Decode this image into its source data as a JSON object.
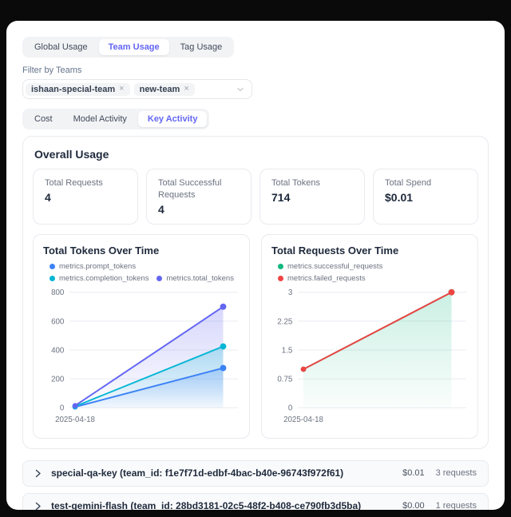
{
  "colors": {
    "accent": "#6366f1",
    "heading": "#1e293b",
    "muted_text": "#6b7280"
  },
  "tabs_primary": [
    {
      "label": "Global Usage",
      "active": false
    },
    {
      "label": "Team Usage",
      "active": true
    },
    {
      "label": "Tag Usage",
      "active": false
    }
  ],
  "filter": {
    "label": "Filter by Teams",
    "selected_teams": [
      "ishaan-special-team",
      "new-team"
    ],
    "remove_icon": "×"
  },
  "tabs_secondary": [
    {
      "label": "Cost",
      "active": false
    },
    {
      "label": "Model Activity",
      "active": false
    },
    {
      "label": "Key Activity",
      "active": true
    }
  ],
  "overall_usage": {
    "title": "Overall Usage",
    "stats": [
      {
        "label": "Total Requests",
        "value": "4"
      },
      {
        "label": "Total Successful Requests",
        "value": "4"
      },
      {
        "label": "Total Tokens",
        "value": "714"
      },
      {
        "label": "Total Spend",
        "value": "$0.01"
      }
    ]
  },
  "chart_data": [
    {
      "type": "area",
      "title": "Total Tokens Over Time",
      "x_labels": [
        "2025-04-18"
      ],
      "num_points": 2,
      "ylim": [
        0,
        800
      ],
      "yticks": [
        0,
        200,
        400,
        600,
        800
      ],
      "grid": true,
      "legend_position": "top",
      "series": [
        {
          "name": "metrics.prompt_tokens",
          "color": "#3b82f6",
          "values": [
            5,
            275
          ],
          "area": true
        },
        {
          "name": "metrics.completion_tokens",
          "color": "#06b6d4",
          "values": [
            9,
            425
          ],
          "area": true
        },
        {
          "name": "metrics.total_tokens",
          "color": "#6366f1",
          "values": [
            14,
            700
          ],
          "area": true
        }
      ]
    },
    {
      "type": "area",
      "title": "Total Requests Over Time",
      "x_labels": [
        "2025-04-18"
      ],
      "num_points": 2,
      "ylim": [
        0,
        3
      ],
      "yticks": [
        0,
        0.75,
        1.5,
        2.25,
        3
      ],
      "grid": true,
      "legend_position": "top",
      "series": [
        {
          "name": "metrics.successful_requests",
          "color": "#10b981",
          "values": [
            1,
            3
          ],
          "area": true
        },
        {
          "name": "metrics.failed_requests",
          "color": "#ef4444",
          "values": [
            1,
            3
          ],
          "area": false
        }
      ]
    }
  ],
  "key_rows": [
    {
      "label": "special-qa-key (team_id: f1e7f71d-edbf-4bac-b40e-96743f972f61)",
      "spend": "$0.01",
      "requests": "3 requests"
    },
    {
      "label": "test-gemini-flash (team_id: 28bd3181-02c5-48f2-b408-ce790fb3d5ba)",
      "spend": "$0.00",
      "requests": "1 requests"
    }
  ]
}
